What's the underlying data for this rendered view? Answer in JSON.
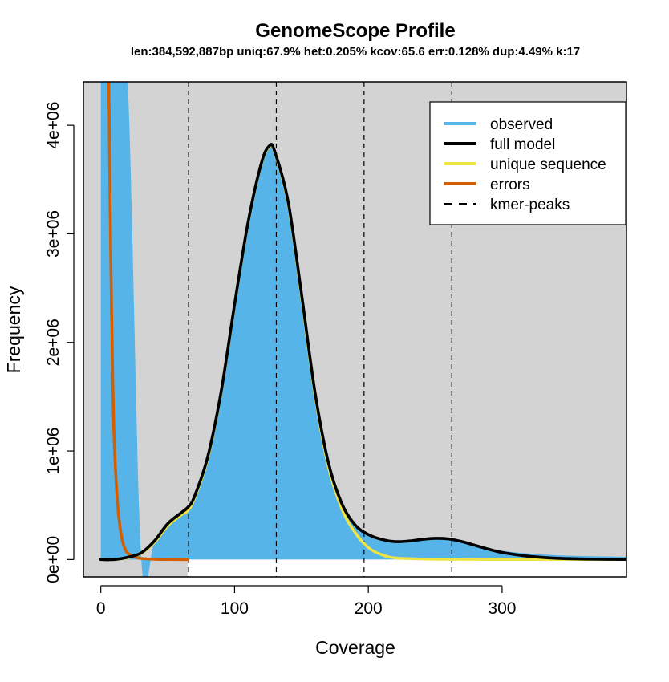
{
  "chart_data": {
    "type": "area",
    "title": "GenomeScope Profile",
    "subtitle": "len:384,592,887bp uniq:67.9%  het:0.205% kcov:65.6 err:0.128%  dup:4.49%  k:17",
    "xlabel": "Coverage",
    "ylabel": "Frequency",
    "xlim": [
      -13,
      393
    ],
    "ylim": [
      -160000,
      4400000
    ],
    "x_ticks": [
      0,
      100,
      200,
      300
    ],
    "x_tick_labels": [
      "0",
      "100",
      "200",
      "300"
    ],
    "y_ticks": [
      0,
      1000000,
      2000000,
      3000000,
      4000000
    ],
    "y_tick_labels": [
      "0e+00",
      "1e+06",
      "2e+06",
      "3e+06",
      "4e+06"
    ],
    "background_color": "#d3d3d3",
    "grid": false,
    "legend_position": "top-right",
    "kmer_peaks": [
      65.6,
      131.2,
      196.8,
      262.4
    ],
    "observed_fill_from_x": 65,
    "series": [
      {
        "name": "observed",
        "style": "area",
        "color": "#56b4e9",
        "x": [
          0,
          1,
          2,
          5,
          10,
          20,
          30,
          40,
          50,
          60,
          70,
          80,
          90,
          100,
          110,
          120,
          126,
          130,
          140,
          150,
          160,
          170,
          180,
          190,
          200,
          210,
          220,
          230,
          240,
          250,
          260,
          270,
          280,
          290,
          300,
          320,
          340,
          360,
          380,
          393
        ],
        "y": [
          4400000,
          4400000,
          4400000,
          4400000,
          4400000,
          4400000,
          50000,
          150000,
          300000,
          420000,
          580000,
          950000,
          1550000,
          2350000,
          3100000,
          3650000,
          3830000,
          3760000,
          3300000,
          2450000,
          1550000,
          900000,
          520000,
          320000,
          230000,
          190000,
          175000,
          180000,
          190000,
          195000,
          190000,
          165000,
          135000,
          105000,
          80000,
          55000,
          40000,
          32000,
          28000,
          26000
        ]
      },
      {
        "name": "full model",
        "style": "line",
        "color": "#000000",
        "x": [
          0,
          10,
          20,
          30,
          40,
          50,
          60,
          65,
          70,
          80,
          90,
          100,
          110,
          120,
          126,
          130,
          140,
          150,
          160,
          170,
          180,
          190,
          200,
          210,
          220,
          230,
          240,
          250,
          260,
          270,
          280,
          290,
          300,
          320,
          340,
          360,
          380,
          393
        ],
        "y": [
          0,
          0,
          20000,
          60000,
          170000,
          330000,
          430000,
          480000,
          580000,
          950000,
          1550000,
          2350000,
          3100000,
          3650000,
          3810000,
          3760000,
          3300000,
          2450000,
          1550000,
          900000,
          520000,
          320000,
          230000,
          185000,
          165000,
          170000,
          185000,
          195000,
          190000,
          165000,
          130000,
          95000,
          65000,
          30000,
          12000,
          5000,
          2000,
          1000
        ]
      },
      {
        "name": "unique sequence",
        "style": "line",
        "color": "#f0e442",
        "x": [
          0,
          10,
          20,
          30,
          40,
          50,
          60,
          65,
          70,
          80,
          90,
          100,
          110,
          120,
          126,
          130,
          140,
          150,
          160,
          170,
          180,
          190,
          200,
          210,
          220,
          240,
          260,
          280,
          300,
          340,
          393
        ],
        "y": [
          0,
          0,
          15000,
          55000,
          155000,
          310000,
          410000,
          450000,
          560000,
          930000,
          1540000,
          2340000,
          3090000,
          3640000,
          3800000,
          3750000,
          3280000,
          2420000,
          1520000,
          860000,
          470000,
          250000,
          110000,
          45000,
          15000,
          5000,
          2000,
          1000,
          0,
          0,
          0
        ]
      },
      {
        "name": "errors",
        "style": "line",
        "color": "#d55e00",
        "x": [
          6,
          7,
          8,
          9,
          10,
          12,
          14,
          16,
          18,
          20,
          25,
          30,
          40,
          50,
          65
        ],
        "y": [
          4400000,
          3200000,
          2300000,
          1600000,
          1100000,
          600000,
          330000,
          180000,
          100000,
          60000,
          25000,
          10000,
          3000,
          1000,
          0
        ]
      },
      {
        "name": "kmer-peaks",
        "style": "dashed",
        "color": "#000000"
      }
    ]
  }
}
